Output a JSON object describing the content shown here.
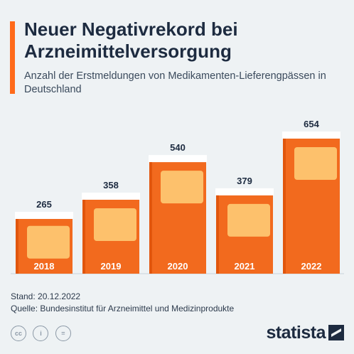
{
  "title": "Neuer Negativrekord bei Arzneimittelversorgung",
  "subtitle": "Anzahl der Erstmeldungen von Medikamenten-Lieferengpässen in Deutschland",
  "source": {
    "stand": "Stand: 20.12.2022",
    "quelle": "Quelle: Bundesinstitut für Arzneimittel und Medizinprodukte"
  },
  "brand": "statista",
  "licenses": [
    "cc",
    "i",
    "="
  ],
  "colors": {
    "bar": "#f26a1e",
    "bar_dark": "#e1560d",
    "label_box": "#ffd07a",
    "cap": "#ffffff",
    "text": "#1d2b40",
    "accent": "#ff6a1a"
  },
  "chart_data": {
    "type": "bar",
    "title": "Neuer Negativrekord bei Arzneimittelversorgung",
    "subtitle": "Anzahl der Erstmeldungen von Medikamenten-Lieferengpässen in Deutschland",
    "categories": [
      "2018",
      "2019",
      "2020",
      "2021",
      "2022"
    ],
    "values": [
      265,
      358,
      540,
      379,
      654
    ],
    "xlabel": "",
    "ylabel": "",
    "ylim": [
      0,
      700
    ],
    "grid": false,
    "legend": "none"
  }
}
